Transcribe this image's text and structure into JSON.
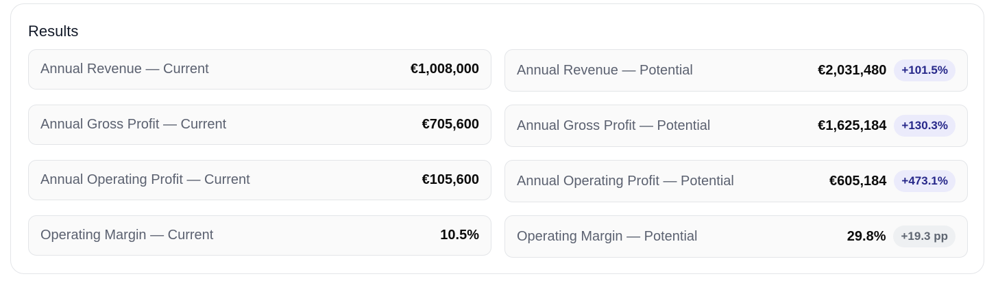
{
  "results": {
    "title": "Results",
    "current": [
      {
        "label": "Annual Revenue — Current",
        "value": "€1,008,000"
      },
      {
        "label": "Annual Gross Profit — Current",
        "value": "€705,600"
      },
      {
        "label": "Annual Operating Profit — Current",
        "value": "€105,600"
      },
      {
        "label": "Operating Margin — Current",
        "value": "10.5%"
      }
    ],
    "potential": [
      {
        "label": "Annual Revenue — Potential",
        "value": "€2,031,480",
        "change": "+101.5%"
      },
      {
        "label": "Annual Gross Profit — Potential",
        "value": "€1,625,184",
        "change": "+130.3%"
      },
      {
        "label": "Annual Operating Profit — Potential",
        "value": "€605,184",
        "change": "+473.1%"
      },
      {
        "label": "Operating Margin — Potential",
        "value": "29.8%",
        "change": "+19.3 pp"
      }
    ]
  },
  "colors": {
    "badge_up_bg": "#ebebfb",
    "badge_up_text": "#27288a",
    "badge_neutral_bg": "#eef0f2",
    "badge_neutral_text": "#5f6672"
  }
}
